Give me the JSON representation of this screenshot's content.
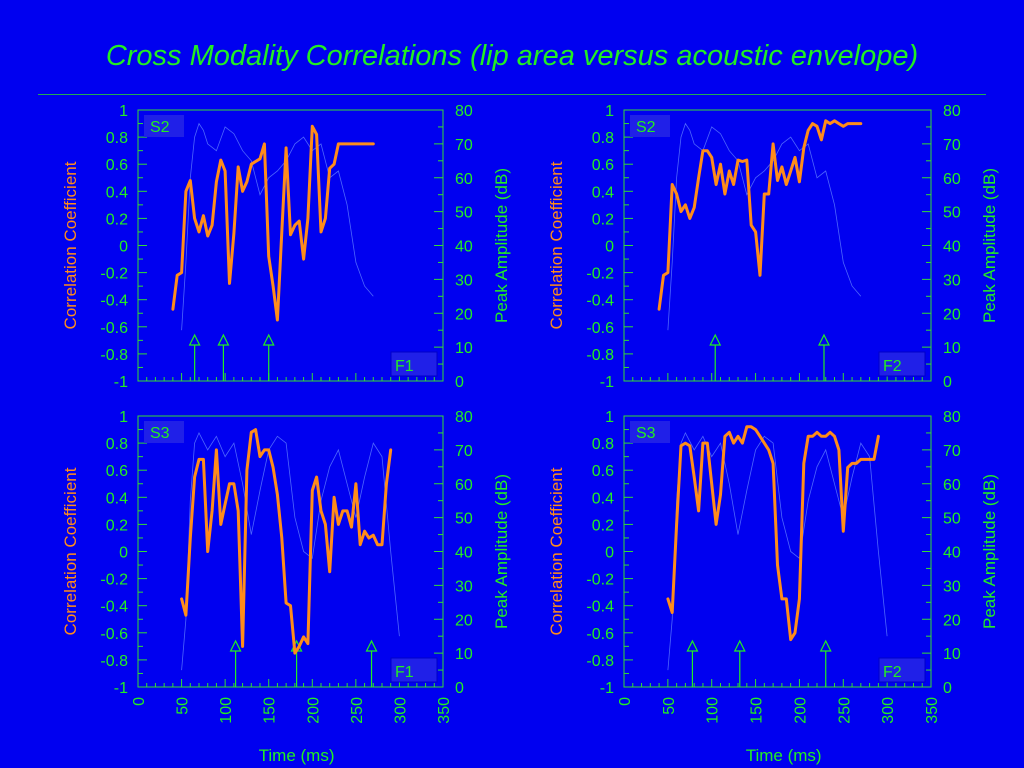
{
  "title": "Cross Modality Correlations (lip area versus acoustic envelope)",
  "colors": {
    "background": "#0000f0",
    "text_green": "#22ee22",
    "correlation": "#ff8c1a",
    "envelope": "#5a78ff",
    "axis": "#33dd33",
    "speaker_box": "#2020e8",
    "formant_box": "#2020e8"
  },
  "chart_data": [
    {
      "type": "line",
      "speaker": "S2",
      "formant": "F1",
      "ylabel_left": "Correlation Coefficient",
      "ylabel_right": "Peak Amplitude (dB)",
      "xlabel": "",
      "xlim": [
        0,
        350
      ],
      "ylim_left": [
        -1,
        1
      ],
      "ylim_right": [
        0,
        80
      ],
      "xticks": [
        "0",
        "50",
        "100",
        "150",
        "200",
        "250",
        "300",
        "350"
      ],
      "show_xtick_labels": false,
      "yticks_left": [
        "1",
        "0.8",
        "0.6",
        "0.4",
        "0.2",
        "0",
        "-0.2",
        "-0.4",
        "-0.6",
        "-0.8",
        "-1"
      ],
      "yticks_right": [
        "80",
        "70",
        "60",
        "50",
        "40",
        "30",
        "20",
        "10",
        "0"
      ],
      "arrows_ms": [
        65,
        98,
        150
      ],
      "series": [
        {
          "axis": "left",
          "x": [
            40,
            45,
            50,
            55,
            60,
            65,
            70,
            75,
            80,
            85,
            90,
            95,
            100,
            105,
            110,
            115,
            120,
            125,
            130,
            135,
            140,
            145,
            150,
            155,
            160,
            165,
            170,
            175,
            180,
            185,
            190,
            195,
            200,
            205,
            210,
            215,
            220,
            225,
            230,
            235,
            240,
            245,
            250,
            255,
            260,
            265,
            270
          ],
          "y": [
            -0.47,
            -0.22,
            -0.2,
            0.4,
            0.48,
            0.2,
            0.1,
            0.22,
            0.07,
            0.15,
            0.47,
            0.63,
            0.55,
            -0.28,
            0.09,
            0.58,
            0.4,
            0.47,
            0.6,
            0.62,
            0.64,
            0.75,
            -0.08,
            -0.3,
            -0.55,
            0.1,
            0.72,
            0.08,
            0.15,
            0.18,
            -0.1,
            0.2,
            0.88,
            0.82,
            0.1,
            0.2,
            0.57,
            0.6,
            0.75,
            0.75,
            0.75,
            0.75,
            0.75,
            0.75,
            0.75,
            0.75,
            0.75
          ]
        },
        {
          "axis": "right",
          "x": [
            50,
            55,
            60,
            65,
            70,
            75,
            80,
            90,
            100,
            110,
            120,
            130,
            140,
            150,
            160,
            170,
            180,
            190,
            200,
            210,
            220,
            230,
            240,
            250,
            260,
            270
          ],
          "y": [
            15,
            35,
            60,
            72,
            76,
            74,
            70,
            68,
            75,
            73,
            68,
            65,
            55,
            60,
            62,
            65,
            70,
            72,
            68,
            70,
            60,
            62,
            52,
            35,
            28,
            25
          ]
        }
      ]
    },
    {
      "type": "line",
      "speaker": "S2",
      "formant": "F2",
      "ylabel_left": "Correlation Coefficient",
      "ylabel_right": "Peak Amplitude (dB)",
      "xlabel": "",
      "xlim": [
        0,
        350
      ],
      "ylim_left": [
        -1,
        1
      ],
      "ylim_right": [
        0,
        80
      ],
      "xticks": [
        "0",
        "50",
        "100",
        "150",
        "200",
        "250",
        "300",
        "350"
      ],
      "show_xtick_labels": false,
      "yticks_left": [
        "1",
        "0.8",
        "0.6",
        "0.4",
        "0.2",
        "0",
        "-0.2",
        "-0.4",
        "-0.6",
        "-0.8",
        "-1"
      ],
      "yticks_right": [
        "80",
        "70",
        "60",
        "50",
        "40",
        "30",
        "20",
        "10",
        "0"
      ],
      "arrows_ms": [
        104,
        228
      ],
      "series": [
        {
          "axis": "left",
          "x": [
            40,
            45,
            50,
            55,
            60,
            65,
            70,
            75,
            80,
            85,
            90,
            95,
            100,
            105,
            110,
            115,
            120,
            125,
            130,
            135,
            140,
            145,
            150,
            155,
            160,
            165,
            170,
            175,
            180,
            185,
            190,
            195,
            200,
            205,
            210,
            215,
            220,
            225,
            230,
            235,
            240,
            245,
            250,
            255,
            260,
            265,
            270
          ],
          "y": [
            -0.47,
            -0.22,
            -0.2,
            0.45,
            0.38,
            0.25,
            0.3,
            0.2,
            0.28,
            0.5,
            0.7,
            0.7,
            0.65,
            0.45,
            0.6,
            0.38,
            0.55,
            0.45,
            0.63,
            0.62,
            0.63,
            0.15,
            0.1,
            -0.22,
            0.38,
            0.38,
            0.75,
            0.48,
            0.58,
            0.45,
            0.55,
            0.65,
            0.47,
            0.72,
            0.85,
            0.9,
            0.88,
            0.78,
            0.92,
            0.9,
            0.92,
            0.9,
            0.88,
            0.9,
            0.9,
            0.9,
            0.9
          ]
        },
        {
          "axis": "right",
          "x": [
            50,
            55,
            60,
            65,
            70,
            75,
            80,
            90,
            100,
            110,
            120,
            130,
            140,
            150,
            160,
            170,
            180,
            190,
            200,
            210,
            220,
            230,
            240,
            250,
            260,
            270
          ],
          "y": [
            15,
            35,
            60,
            72,
            76,
            74,
            70,
            68,
            75,
            73,
            68,
            65,
            55,
            60,
            62,
            65,
            70,
            72,
            68,
            70,
            60,
            62,
            52,
            35,
            28,
            25
          ]
        }
      ]
    },
    {
      "type": "line",
      "speaker": "S3",
      "formant": "F1",
      "ylabel_left": "Correlation Coefficient",
      "ylabel_right": "Peak Amplitude (dB)",
      "xlabel": "Time (ms)",
      "xlim": [
        0,
        350
      ],
      "ylim_left": [
        -1,
        1
      ],
      "ylim_right": [
        0,
        80
      ],
      "xticks": [
        "0",
        "50",
        "100",
        "150",
        "200",
        "250",
        "300",
        "350"
      ],
      "show_xtick_labels": true,
      "yticks_left": [
        "1",
        "0.8",
        "0.6",
        "0.4",
        "0.2",
        "0",
        "-0.2",
        "-0.4",
        "-0.6",
        "-0.8",
        "-1"
      ],
      "yticks_right": [
        "80",
        "70",
        "60",
        "50",
        "40",
        "30",
        "20",
        "10",
        "0"
      ],
      "arrows_ms": [
        112,
        182,
        268
      ],
      "series": [
        {
          "axis": "left",
          "x": [
            50,
            55,
            60,
            65,
            70,
            75,
            80,
            85,
            90,
            95,
            100,
            105,
            110,
            115,
            120,
            125,
            130,
            135,
            140,
            145,
            150,
            155,
            160,
            165,
            170,
            175,
            180,
            185,
            190,
            195,
            200,
            205,
            210,
            215,
            220,
            225,
            230,
            235,
            240,
            245,
            250,
            255,
            260,
            265,
            270,
            275,
            280,
            285,
            290
          ],
          "y": [
            -0.35,
            -0.47,
            0.1,
            0.55,
            0.68,
            0.68,
            0.0,
            0.3,
            0.75,
            0.2,
            0.35,
            0.5,
            0.5,
            0.3,
            -0.7,
            0.6,
            0.88,
            0.9,
            0.7,
            0.75,
            0.75,
            0.62,
            0.42,
            0.1,
            -0.38,
            -0.4,
            -0.75,
            -0.7,
            -0.63,
            -0.68,
            0.45,
            0.55,
            0.3,
            0.2,
            -0.15,
            0.4,
            0.2,
            0.3,
            0.3,
            0.18,
            0.5,
            0.05,
            0.15,
            0.1,
            0.12,
            0.05,
            0.05,
            0.5,
            0.75
          ]
        },
        {
          "axis": "right",
          "x": [
            50,
            55,
            60,
            65,
            70,
            80,
            90,
            100,
            110,
            120,
            130,
            140,
            150,
            160,
            170,
            180,
            190,
            200,
            210,
            220,
            230,
            240,
            250,
            260,
            270,
            280,
            290,
            300
          ],
          "y": [
            5,
            20,
            55,
            72,
            75,
            70,
            74,
            68,
            72,
            60,
            45,
            58,
            70,
            74,
            72,
            50,
            40,
            38,
            55,
            65,
            70,
            60,
            50,
            62,
            72,
            68,
            40,
            15
          ]
        }
      ]
    },
    {
      "type": "line",
      "speaker": "S3",
      "formant": "F2",
      "ylabel_left": "Correlation Coefficient",
      "ylabel_right": "Peak Amplitude (dB)",
      "xlabel": "Time (ms)",
      "xlim": [
        0,
        350
      ],
      "ylim_left": [
        -1,
        1
      ],
      "ylim_right": [
        0,
        80
      ],
      "xticks": [
        "0",
        "50",
        "100",
        "150",
        "200",
        "250",
        "300",
        "350"
      ],
      "show_xtick_labels": true,
      "yticks_left": [
        "1",
        "0.8",
        "0.6",
        "0.4",
        "0.2",
        "0",
        "-0.2",
        "-0.4",
        "-0.6",
        "-0.8",
        "-1"
      ],
      "yticks_right": [
        "80",
        "70",
        "60",
        "50",
        "40",
        "30",
        "20",
        "10",
        "0"
      ],
      "arrows_ms": [
        78,
        132,
        230
      ],
      "series": [
        {
          "axis": "left",
          "x": [
            50,
            55,
            60,
            65,
            70,
            75,
            80,
            85,
            90,
            95,
            100,
            105,
            110,
            115,
            120,
            125,
            130,
            135,
            140,
            145,
            150,
            155,
            160,
            165,
            170,
            175,
            180,
            185,
            190,
            195,
            200,
            205,
            210,
            215,
            220,
            225,
            230,
            235,
            240,
            245,
            250,
            255,
            260,
            265,
            270,
            275,
            280,
            285,
            290
          ],
          "y": [
            -0.35,
            -0.45,
            0.2,
            0.78,
            0.8,
            0.78,
            0.55,
            0.3,
            0.8,
            0.8,
            0.5,
            0.2,
            0.42,
            0.85,
            0.88,
            0.8,
            0.85,
            0.8,
            0.92,
            0.92,
            0.9,
            0.85,
            0.8,
            0.75,
            0.65,
            -0.1,
            -0.35,
            -0.35,
            -0.65,
            -0.6,
            -0.35,
            0.65,
            0.85,
            0.85,
            0.88,
            0.85,
            0.85,
            0.88,
            0.85,
            0.75,
            0.15,
            0.62,
            0.65,
            0.65,
            0.68,
            0.68,
            0.68,
            0.68,
            0.85
          ]
        },
        {
          "axis": "right",
          "x": [
            50,
            55,
            60,
            65,
            70,
            80,
            90,
            100,
            110,
            120,
            130,
            140,
            150,
            160,
            170,
            180,
            190,
            200,
            210,
            220,
            230,
            240,
            250,
            260,
            270,
            280,
            290,
            300
          ],
          "y": [
            5,
            20,
            55,
            72,
            75,
            70,
            74,
            68,
            72,
            60,
            45,
            58,
            70,
            74,
            72,
            50,
            40,
            38,
            55,
            65,
            70,
            60,
            50,
            62,
            72,
            68,
            40,
            15
          ]
        }
      ]
    }
  ]
}
